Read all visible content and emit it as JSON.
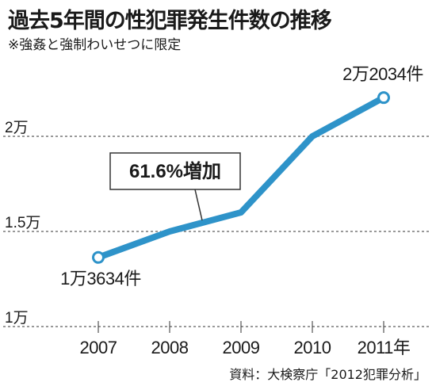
{
  "title": "過去5年間の性犯罪発生件数の推移",
  "subtitle": "※強姦と強制わいせつに限定",
  "source": "資料：大検察庁「2012犯罪分析」",
  "chart_data": {
    "type": "line",
    "x": [
      "2007",
      "2008",
      "2009",
      "2010",
      "2011年"
    ],
    "values": [
      13634,
      15000,
      16000,
      20000,
      22034
    ],
    "ylim": [
      10000,
      23000
    ],
    "y_ticks": [
      {
        "value": 10000,
        "label": "1万"
      },
      {
        "value": 15000,
        "label": "1.5万"
      },
      {
        "value": 20000,
        "label": "2万"
      }
    ],
    "grid": "horizontal dashed",
    "point_labels": [
      {
        "index": 0,
        "text": "1万3634件"
      },
      {
        "index": 4,
        "text": "2万2034件"
      }
    ],
    "annotation": "61.6%増加",
    "line_color": "#2e93c9"
  }
}
